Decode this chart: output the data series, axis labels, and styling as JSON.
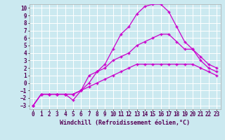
{
  "title": "",
  "xlabel": "Windchill (Refroidissement éolien,°C)",
  "ylabel": "",
  "background_color": "#cbe9f0",
  "grid_color": "#ffffff",
  "line_color": "#cc00cc",
  "xlim": [
    -0.5,
    23.5
  ],
  "ylim": [
    -3.5,
    10.5
  ],
  "xticks": [
    0,
    1,
    2,
    3,
    4,
    5,
    6,
    7,
    8,
    9,
    10,
    11,
    12,
    13,
    14,
    15,
    16,
    17,
    18,
    19,
    20,
    21,
    22,
    23
  ],
  "yticks": [
    -3,
    -2,
    -1,
    0,
    1,
    2,
    3,
    4,
    5,
    6,
    7,
    8,
    9,
    10
  ],
  "series1_x": [
    0,
    1,
    2,
    3,
    4,
    5,
    6,
    7,
    8,
    9,
    10,
    11,
    12,
    13,
    14,
    15,
    16,
    17,
    18,
    19,
    20,
    21,
    22,
    23
  ],
  "series1_y": [
    -3,
    -1.5,
    -1.5,
    -1.5,
    -1.5,
    -2.3,
    -1.0,
    0.0,
    1.5,
    2.5,
    4.5,
    6.5,
    7.5,
    9.2,
    10.2,
    10.5,
    10.5,
    9.5,
    7.5,
    5.5,
    4.5,
    3.0,
    2.0,
    1.5
  ],
  "series2_x": [
    0,
    1,
    2,
    3,
    4,
    5,
    6,
    7,
    8,
    9,
    10,
    11,
    12,
    13,
    14,
    15,
    16,
    17,
    18,
    19,
    20,
    21,
    22,
    23
  ],
  "series2_y": [
    -3,
    -1.5,
    -1.5,
    -1.5,
    -1.5,
    -1.5,
    -1.0,
    1.0,
    1.5,
    2.0,
    3.0,
    3.5,
    4.0,
    5.0,
    5.5,
    6.0,
    6.5,
    6.5,
    5.5,
    4.5,
    4.5,
    3.5,
    2.5,
    2.0
  ],
  "series3_x": [
    0,
    1,
    2,
    3,
    4,
    5,
    6,
    7,
    8,
    9,
    10,
    11,
    12,
    13,
    14,
    15,
    16,
    17,
    18,
    19,
    20,
    21,
    22,
    23
  ],
  "series3_y": [
    -3,
    -1.5,
    -1.5,
    -1.5,
    -1.5,
    -1.5,
    -1.0,
    -0.5,
    0.0,
    0.5,
    1.0,
    1.5,
    2.0,
    2.5,
    2.5,
    2.5,
    2.5,
    2.5,
    2.5,
    2.5,
    2.5,
    2.0,
    1.5,
    1.0
  ],
  "tick_fontsize": 5.5,
  "xlabel_fontsize": 6.0
}
